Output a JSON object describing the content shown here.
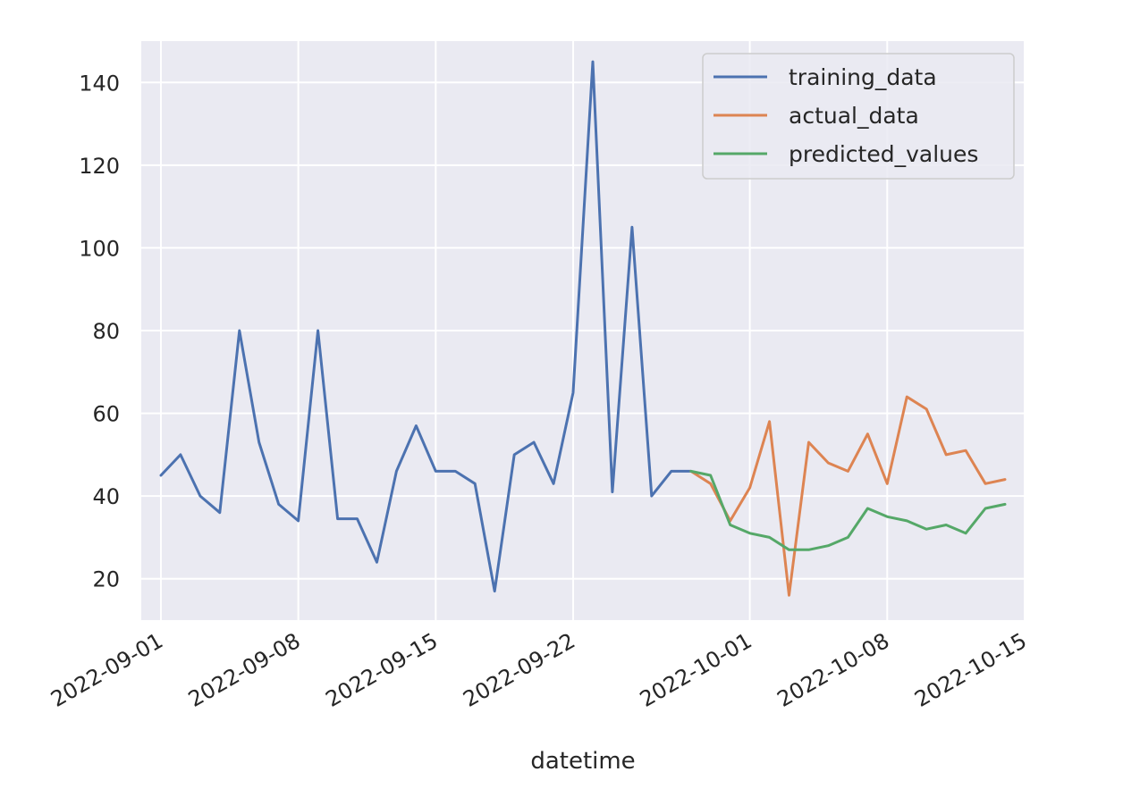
{
  "chart_data": {
    "type": "line",
    "title": "",
    "xlabel": "datetime",
    "ylabel": "",
    "x_type": "date",
    "xlim": [
      "2022-08-31",
      "2022-10-15"
    ],
    "ylim": [
      10,
      150
    ],
    "x_ticks": [
      "2022-09-01",
      "2022-09-08",
      "2022-09-15",
      "2022-09-22",
      "2022-10-01",
      "2022-10-08",
      "2022-10-15"
    ],
    "y_ticks": [
      20,
      40,
      60,
      80,
      100,
      120,
      140
    ],
    "grid": true,
    "legend": "top-right",
    "background": "#eaeaf2",
    "series": [
      {
        "name": "training_data",
        "color": "#4c72b0",
        "x": [
          "2022-09-01",
          "2022-09-02",
          "2022-09-03",
          "2022-09-04",
          "2022-09-05",
          "2022-09-06",
          "2022-09-07",
          "2022-09-08",
          "2022-09-09",
          "2022-09-10",
          "2022-09-11",
          "2022-09-12",
          "2022-09-13",
          "2022-09-14",
          "2022-09-15",
          "2022-09-16",
          "2022-09-17",
          "2022-09-18",
          "2022-09-19",
          "2022-09-20",
          "2022-09-21",
          "2022-09-22",
          "2022-09-23",
          "2022-09-24",
          "2022-09-25",
          "2022-09-26",
          "2022-09-27",
          "2022-09-28"
        ],
        "values": [
          45,
          50,
          40,
          36,
          80,
          53,
          38,
          34,
          80,
          34.5,
          34.5,
          24,
          46,
          57,
          46,
          46,
          43,
          17,
          50,
          53,
          43,
          65,
          145,
          41,
          105,
          40,
          46,
          46
        ]
      },
      {
        "name": "actual_data",
        "color": "#dd8452",
        "x": [
          "2022-09-28",
          "2022-09-29",
          "2022-09-30",
          "2022-10-01",
          "2022-10-02",
          "2022-10-03",
          "2022-10-04",
          "2022-10-05",
          "2022-10-06",
          "2022-10-07",
          "2022-10-08",
          "2022-10-09",
          "2022-10-10",
          "2022-10-11",
          "2022-10-12",
          "2022-10-13",
          "2022-10-14"
        ],
        "values": [
          46,
          43,
          34,
          42,
          58,
          16,
          53,
          48,
          46,
          55,
          43,
          64,
          61,
          50,
          51,
          43,
          44
        ]
      },
      {
        "name": "predicted_values",
        "color": "#55a868",
        "x": [
          "2022-09-28",
          "2022-09-29",
          "2022-09-30",
          "2022-10-01",
          "2022-10-02",
          "2022-10-03",
          "2022-10-04",
          "2022-10-05",
          "2022-10-06",
          "2022-10-07",
          "2022-10-08",
          "2022-10-09",
          "2022-10-10",
          "2022-10-11",
          "2022-10-12",
          "2022-10-13",
          "2022-10-14"
        ],
        "values": [
          46,
          45,
          33,
          31,
          30,
          27,
          27,
          28,
          30,
          37,
          35,
          34,
          32,
          33,
          31,
          37,
          38
        ]
      }
    ]
  }
}
